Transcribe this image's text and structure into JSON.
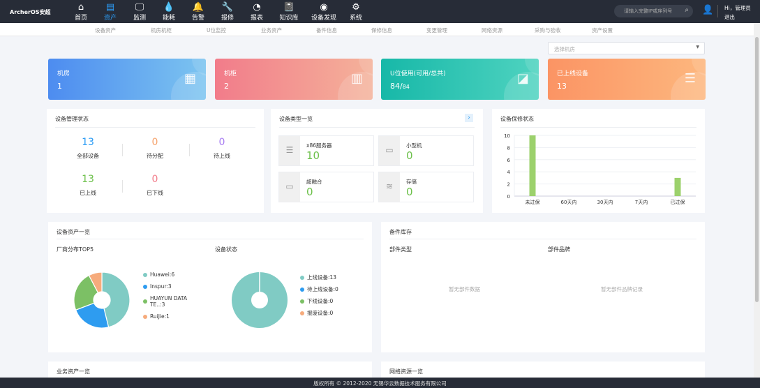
{
  "header": {
    "logo": "ArcherOS安超",
    "nav": [
      {
        "label": "首页",
        "icon": "⌂"
      },
      {
        "label": "资产",
        "icon": "▤",
        "active": true
      },
      {
        "label": "监测",
        "icon": "🖵"
      },
      {
        "label": "能耗",
        "icon": "💧"
      },
      {
        "label": "告警",
        "icon": "🔔"
      },
      {
        "label": "报修",
        "icon": "🔧"
      },
      {
        "label": "报表",
        "icon": "◔"
      },
      {
        "label": "知识库",
        "icon": "📓"
      },
      {
        "label": "设备发现",
        "icon": "◉"
      },
      {
        "label": "系统",
        "icon": "⚙"
      }
    ],
    "search_placeholder": "请输入完整IP或序列号",
    "greeting": "Hi，管理员",
    "logout": "退出"
  },
  "subnav": [
    "设备资产",
    "机房机柜",
    "U位监控",
    "业务资产",
    "备件信息",
    "保修信息",
    "变更管理",
    "网络资源",
    "采购与验收",
    "资产设置"
  ],
  "room_select": "选择机房",
  "cards": [
    {
      "title": "机房",
      "value": "1",
      "color": "#4f8ff0"
    },
    {
      "title": "机柜",
      "value": "2",
      "color": "#f27c8a"
    },
    {
      "title": "U位使用(可用/总共)",
      "value": "84/",
      "value2": "84",
      "color": "#1bbcae"
    },
    {
      "title": "已上线设备",
      "value": "13",
      "color": "#fb9a6a"
    }
  ],
  "mgmt": {
    "title": "设备管理状态",
    "items": [
      {
        "n": "13",
        "l": "全部设备",
        "c": "#2b9bf4"
      },
      {
        "n": "0",
        "l": "待分配",
        "c": "#f5a26b"
      },
      {
        "n": "0",
        "l": "待上线",
        "c": "#a77cf2"
      },
      {
        "n": "13",
        "l": "已上线",
        "c": "#6cc04a"
      },
      {
        "n": "0",
        "l": "已下线",
        "c": "#f27c8a"
      }
    ]
  },
  "types": {
    "title": "设备类型一览",
    "items": [
      {
        "l": "x86服务器",
        "n": "10"
      },
      {
        "l": "小型机",
        "n": "0"
      },
      {
        "l": "超融合",
        "n": "0"
      },
      {
        "l": "存储",
        "n": "0"
      }
    ]
  },
  "warranty": {
    "title": "设备保修状态"
  },
  "assets": {
    "title": "设备资产一览",
    "vendor_title": "厂商分布TOP5",
    "status_title": "设备状态"
  },
  "spares": {
    "title": "备件库存",
    "type_title": "部件类型",
    "brand_title": "部件品牌",
    "type_empty": "暂无部件数据",
    "brand_empty": "暂无部件品牌记录"
  },
  "biz_title": "业务资产一览",
  "net_title": "网络资源一览",
  "footer": "版权所有 © 2012-2020  无锡华云数据技术服务有限公司",
  "chart_data": [
    {
      "type": "bar",
      "categories": [
        "未过保",
        "60天内",
        "30天内",
        "7天内",
        "已过保"
      ],
      "values": [
        10,
        0,
        0,
        0,
        3
      ],
      "ylim": [
        0,
        10
      ],
      "yticks": [
        0,
        2,
        4,
        6,
        8,
        10
      ],
      "color": "#9cd16c",
      "grid": true
    },
    {
      "type": "pie",
      "donut": true,
      "labels": [
        "Huawei:6",
        "Inspur:3",
        "HUAYUN DATA TE..:3",
        "RuiJie:1"
      ],
      "values": [
        6,
        3,
        3,
        1
      ],
      "colors": [
        "#80cbc4",
        "#2e9cf0",
        "#7cc065",
        "#f6ab7c"
      ],
      "legend": "right"
    },
    {
      "type": "pie",
      "donut": true,
      "labels": [
        "上线设备:13",
        "待上线设备:0",
        "下线设备:0",
        "报废设备:0"
      ],
      "values": [
        13,
        0,
        0,
        0
      ],
      "colors": [
        "#80cbc4",
        "#2e9cf0",
        "#7cc065",
        "#f6ab7c"
      ],
      "legend": "right"
    }
  ]
}
